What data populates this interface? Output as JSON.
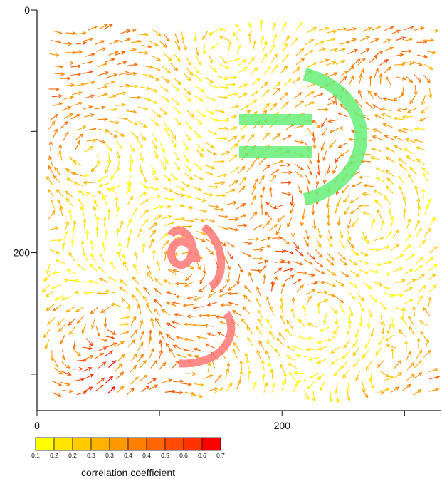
{
  "chart_data": {
    "type": "vector_field",
    "title": "",
    "xlabel": "",
    "ylabel": "",
    "xlim": [
      0,
      330
    ],
    "ylim": [
      0,
      330
    ],
    "y_axis_inverted": true,
    "grid": false,
    "x_ticks": [
      {
        "value": 0,
        "label": "0"
      },
      {
        "value": 100,
        "label": ""
      },
      {
        "value": 200,
        "label": "200"
      },
      {
        "value": 300,
        "label": ""
      }
    ],
    "y_ticks": [
      {
        "value": 0,
        "label": "0"
      },
      {
        "value": 100,
        "label": ""
      },
      {
        "value": 200,
        "label": "200"
      },
      {
        "value": 300,
        "label": ""
      }
    ],
    "colorbar": {
      "title": "correlation coefficient",
      "placement": "bottom-left",
      "colors": [
        "#ffff00",
        "#ffe500",
        "#ffcc00",
        "#ffb200",
        "#ff9900",
        "#ff8000",
        "#ff6600",
        "#ff4c00",
        "#ff3300",
        "#ff0000"
      ],
      "labels": [
        "0.1",
        "0.2",
        "0.2",
        "0.3",
        "0.3",
        "0.4",
        "0.4",
        "0.5",
        "0.6",
        "0.6",
        "0.7"
      ]
    },
    "overlays": [
      {
        "name": "equals-bars",
        "color": "#66ee77",
        "points": [
          [
            167,
            89
          ],
          [
            226,
            89
          ],
          [
            167,
            115
          ],
          [
            226,
            115
          ]
        ]
      },
      {
        "name": "paren-arc",
        "color": "#66ee77",
        "center": [
          219,
          110
        ],
        "radius": 66
      },
      {
        "name": "spiral-nine",
        "color": "#ff7777",
        "points": [
          [
            145,
            175
          ],
          [
            160,
            205
          ],
          [
            160,
            270
          ],
          [
            150,
            280
          ]
        ]
      }
    ]
  }
}
